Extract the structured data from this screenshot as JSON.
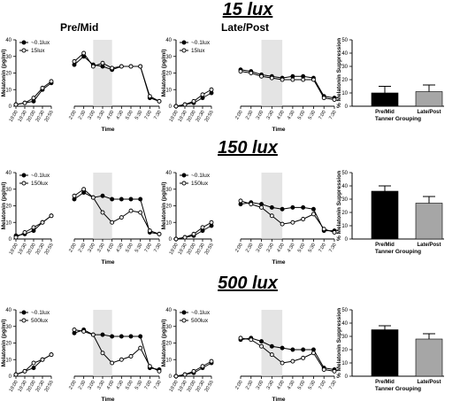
{
  "headers": [
    "15 lux",
    "150 lux",
    "500 lux"
  ],
  "groups": [
    "Pre/Mid",
    "Late/Post"
  ],
  "common": {
    "ylabel_curve": "Melatonin (pg/ml)",
    "xlabel_time": "Time",
    "ylabel_bar": "% Melatonin Suppression",
    "xlabel_bar": "Tanner  Grouping",
    "baseline_times": [
      "19:00",
      "19:30",
      "20:00",
      "20:30",
      "20:55"
    ],
    "night_times": [
      "2:00",
      "2:30",
      "3:00",
      "3:30",
      "4:00",
      "4:30",
      "5:00",
      "5:30",
      "7:00",
      "7:30"
    ],
    "yticks_curve": [
      0,
      10,
      20,
      30,
      40
    ],
    "yticks_bar": [
      0,
      10,
      20,
      30,
      40,
      50
    ],
    "bar_categories": [
      "Pre/Mid",
      "Late/Post"
    ]
  },
  "colors": {
    "premid_bar": "#000000",
    "latepost_bar": "#a6a6a6",
    "shade": "#d9d9d9"
  },
  "chart_data": [
    {
      "type": "line",
      "panel": "15 lux Pre/Mid",
      "ylim": [
        0,
        40
      ],
      "series": [
        {
          "name": "~0.1lux",
          "marker": "filled",
          "baseline": [
            1,
            2,
            3,
            10,
            14
          ],
          "night": [
            25,
            30,
            25,
            24,
            22,
            24,
            24,
            24,
            5,
            3
          ]
        },
        {
          "name": "15lux",
          "marker": "open",
          "baseline": [
            1,
            2,
            5,
            11,
            15
          ],
          "night": [
            27,
            32,
            24,
            26,
            23,
            24,
            24,
            24,
            6,
            3
          ]
        }
      ]
    },
    {
      "type": "line",
      "panel": "15 lux Late/Post",
      "ylim": [
        0,
        40
      ],
      "series": [
        {
          "name": "~0.1lux",
          "marker": "filled",
          "baseline": [
            0,
            1,
            2,
            5,
            8
          ],
          "night": [
            22,
            21,
            19,
            18,
            17,
            18,
            18,
            17,
            6,
            5
          ]
        },
        {
          "name": "15lux",
          "marker": "open",
          "baseline": [
            0,
            1,
            3,
            7,
            10
          ],
          "night": [
            21,
            20,
            18,
            17,
            16,
            16,
            16,
            16,
            5,
            4
          ]
        }
      ]
    },
    {
      "type": "bar",
      "panel": "15 lux suppression",
      "ylim": [
        0,
        50
      ],
      "categories": [
        "Pre/Mid",
        "Late/Post"
      ],
      "values": [
        10,
        11
      ],
      "errors": [
        5,
        5
      ]
    },
    {
      "type": "line",
      "panel": "150 lux Pre/Mid",
      "ylim": [
        0,
        40
      ],
      "series": [
        {
          "name": "~0.1lux",
          "marker": "filled",
          "baseline": [
            2,
            3,
            5,
            10,
            14
          ],
          "night": [
            24,
            28,
            25,
            26,
            24,
            24,
            24,
            24,
            4,
            3
          ]
        },
        {
          "name": "150lux",
          "marker": "open",
          "baseline": [
            1,
            4,
            7,
            10,
            14
          ],
          "night": [
            26,
            30,
            25,
            16,
            10,
            13,
            17,
            16,
            5,
            3
          ]
        }
      ]
    },
    {
      "type": "line",
      "panel": "150 lux Late/Post",
      "ylim": [
        0,
        40
      ],
      "series": [
        {
          "name": "~0.1lux",
          "marker": "filled",
          "baseline": [
            0,
            1,
            2,
            5,
            8
          ],
          "night": [
            21,
            22,
            21,
            19,
            18,
            19,
            19,
            18,
            5,
            5
          ]
        },
        {
          "name": "150lux",
          "marker": "open",
          "baseline": [
            0,
            1,
            3,
            7,
            10
          ],
          "night": [
            23,
            21,
            19,
            14,
            9,
            10,
            12,
            15,
            6,
            4
          ]
        }
      ]
    },
    {
      "type": "bar",
      "panel": "150 lux suppression",
      "ylim": [
        0,
        50
      ],
      "categories": [
        "Pre/Mid",
        "Late/Post"
      ],
      "values": [
        36,
        27
      ],
      "errors": [
        4,
        5
      ]
    },
    {
      "type": "line",
      "panel": "500 lux Pre/Mid",
      "ylim": [
        0,
        40
      ],
      "series": [
        {
          "name": "~0.1lux",
          "marker": "filled",
          "baseline": [
            1,
            3,
            5,
            10,
            13
          ],
          "night": [
            26,
            28,
            25,
            25,
            24,
            24,
            24,
            24,
            5,
            4
          ]
        },
        {
          "name": "500lux",
          "marker": "open",
          "baseline": [
            1,
            3,
            8,
            10,
            13
          ],
          "night": [
            28,
            27,
            25,
            14,
            8,
            10,
            12,
            17,
            6,
            3
          ]
        }
      ]
    },
    {
      "type": "line",
      "panel": "500 lux Late/Post",
      "ylim": [
        0,
        40
      ],
      "series": [
        {
          "name": "~0.1lux",
          "marker": "filled",
          "baseline": [
            0,
            1,
            2,
            5,
            8
          ],
          "night": [
            22,
            23,
            21,
            18,
            17,
            16,
            16,
            16,
            5,
            4
          ]
        },
        {
          "name": "500lux",
          "marker": "open",
          "baseline": [
            0,
            1,
            3,
            6,
            9
          ],
          "night": [
            23,
            22,
            18,
            13,
            8,
            9,
            11,
            14,
            4,
            3
          ]
        }
      ]
    },
    {
      "type": "bar",
      "panel": "500 lux suppression",
      "ylim": [
        0,
        50
      ],
      "categories": [
        "Pre/Mid",
        "Late/Post"
      ],
      "values": [
        35,
        28
      ],
      "errors": [
        3,
        4
      ]
    }
  ]
}
